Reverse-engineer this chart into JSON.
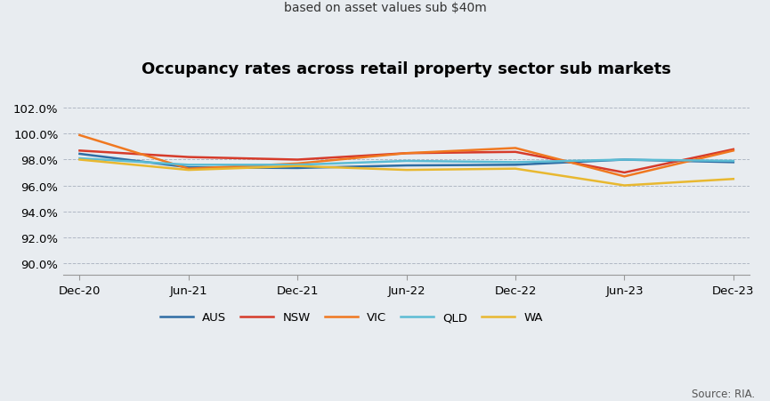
{
  "title": "Occupancy rates across retail property sector sub markets",
  "subtitle": "based on asset values sub $40m",
  "source": "Source: RIA.",
  "background_color": "#e8ecf0",
  "plot_bg_color": "#e8ecf0",
  "x_labels": [
    "Dec-20",
    "Jun-21",
    "Dec-21",
    "Jun-22",
    "Dec-22",
    "Jun-23",
    "Dec-23"
  ],
  "yticks": [
    0.9,
    0.92,
    0.94,
    0.96,
    0.98,
    1.0,
    1.02
  ],
  "ylim_low": 0.891,
  "ylim_high": 1.026,
  "series": [
    {
      "label": "AUS",
      "color": "#2e6da4",
      "linewidth": 1.8,
      "values": [
        0.9845,
        0.974,
        0.9735,
        0.9755,
        0.976,
        0.98,
        0.978
      ]
    },
    {
      "label": "NSW",
      "color": "#d63b2a",
      "linewidth": 1.8,
      "values": [
        0.987,
        0.982,
        0.98,
        0.985,
        0.986,
        0.97,
        0.988
      ]
    },
    {
      "label": "VIC",
      "color": "#f07820",
      "linewidth": 1.8,
      "values": [
        0.999,
        0.973,
        0.977,
        0.985,
        0.989,
        0.967,
        0.987
      ]
    },
    {
      "label": "QLD",
      "color": "#5bbcd4",
      "linewidth": 1.8,
      "values": [
        0.981,
        0.976,
        0.976,
        0.979,
        0.978,
        0.98,
        0.979
      ]
    },
    {
      "label": "WA",
      "color": "#e8b830",
      "linewidth": 1.8,
      "values": [
        0.98,
        0.972,
        0.975,
        0.972,
        0.973,
        0.96,
        0.965
      ]
    }
  ]
}
